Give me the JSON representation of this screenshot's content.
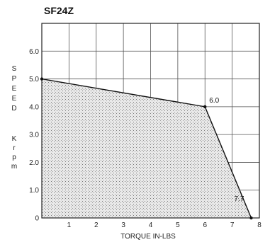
{
  "chart_data": {
    "type": "area",
    "title": "SF24Z",
    "xlabel": "TORQUE IN-LBS",
    "ylabel": "SPEED Krpm",
    "ylabel_speed": [
      "S",
      "P",
      "E",
      "E",
      "D"
    ],
    "ylabel_unit": [
      "K",
      "r",
      "p",
      "m"
    ],
    "xlim": [
      0,
      8
    ],
    "ylim": [
      0,
      7
    ],
    "x_ticks": [
      "1",
      "2",
      "3",
      "4",
      "5",
      "6",
      "7",
      "8"
    ],
    "y_ticks": [
      "0",
      "1.0",
      "2.0",
      "3.0",
      "4.0",
      "5.0",
      "6.0"
    ],
    "grid": true,
    "x": [
      0,
      6.0,
      7.7
    ],
    "y": [
      5.0,
      4.0,
      0
    ],
    "annotations": [
      "6.0",
      "7.7"
    ]
  }
}
